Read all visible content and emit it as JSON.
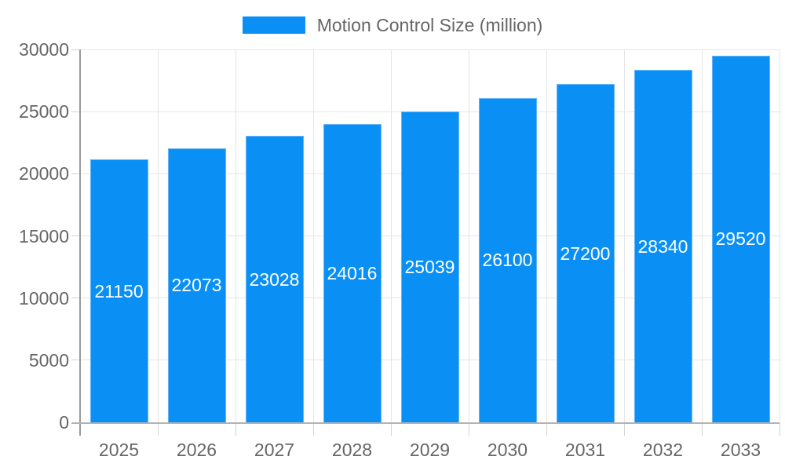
{
  "legend": {
    "label": "Motion Control Size (million)"
  },
  "colors": {
    "bar": "#0a90f5",
    "bar_border": "#66b4f7",
    "bar_label": "#ffffff",
    "grid": "#e5e5e5",
    "tick": "#d4d4d4",
    "y_axis_line": "#999999",
    "x_axis_line": "#b3b3b3",
    "axis_label": "#666666",
    "background": "#ffffff"
  },
  "chart_data": {
    "type": "bar",
    "title": "",
    "xlabel": "",
    "ylabel": "",
    "categories": [
      "2025",
      "2026",
      "2027",
      "2028",
      "2029",
      "2030",
      "2031",
      "2032",
      "2033"
    ],
    "series": [
      {
        "name": "Motion Control Size (million)",
        "values": [
          21150,
          22073,
          23028,
          24016,
          25039,
          26100,
          27200,
          28340,
          29520
        ]
      }
    ],
    "bar_labels_visible": true,
    "ylim": [
      0,
      30000
    ],
    "ytick_step": 5000,
    "y_tick_labels": [
      "0",
      "5000",
      "10000",
      "15000",
      "20000",
      "25000",
      "30000"
    ],
    "grid": "both",
    "legend_position": "top-center"
  }
}
